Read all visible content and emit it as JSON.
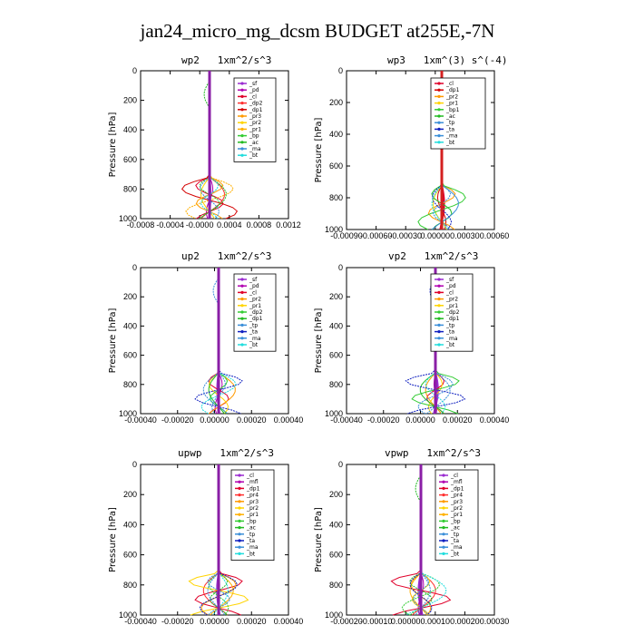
{
  "title": "jan24_micro_mg_dcsm  BUDGET at255E,-7N",
  "chart_data": [
    {
      "type": "line",
      "title": "wp2   1xm^2/s^3",
      "ylabel": "Pressure [hPa]",
      "ylim": [
        1000,
        0
      ],
      "y_ticks": [
        "0",
        "200",
        "400",
        "600",
        "800",
        "1000"
      ],
      "x_ticks": [
        "-0.0008",
        "-0.0004",
        "-0.0000",
        "0.0004",
        "0.0008",
        "0.0012"
      ],
      "legend": [
        "_sf",
        "_pd",
        "_cl",
        "_dp2",
        "_dp1",
        "_pr3",
        "_pr2",
        "_pr1",
        "_bp",
        "_ac",
        "_ma",
        "_bt"
      ],
      "colors": [
        "#9a2bd1",
        "#b000b0",
        "#e0002a",
        "#ff3030",
        "#d40000",
        "#ff9a00",
        "#ffd400",
        "#ffb000",
        "#33cc33",
        "#22bb22",
        "#3b8fd9",
        "#22dddd"
      ]
    },
    {
      "type": "line",
      "title": "wp3   1xm^(3) s^(-4)",
      "ylabel": "Pressure [hPa]",
      "ylim": [
        1000,
        0
      ],
      "y_ticks": [
        "0",
        "200",
        "400",
        "600",
        "800",
        "1000"
      ],
      "x_ticks": [
        "-0.00090",
        "-0.00060",
        "-0.00030",
        "0.00000",
        "0.00030",
        "0.00060"
      ],
      "legend": [
        "_cl",
        "_dp1",
        "_pr2",
        "_pr1",
        "_bp1",
        "_ac",
        "_tp",
        "_ta",
        "_ma",
        "_bt"
      ],
      "colors": [
        "#e0002a",
        "#d40000",
        "#ff9a00",
        "#ffd400",
        "#33cc33",
        "#22bb22",
        "#3b8fd9",
        "#1020c0",
        "#3b8fd9",
        "#22dddd"
      ]
    },
    {
      "type": "line",
      "title": "up2   1xm^2/s^3",
      "ylabel": "Pressure [hPa]",
      "ylim": [
        1000,
        0
      ],
      "y_ticks": [
        "0",
        "200",
        "400",
        "600",
        "800",
        "1000"
      ],
      "x_ticks": [
        "-0.00040",
        "-0.00020",
        "0.00000",
        "0.00020",
        "0.00040"
      ],
      "legend": [
        "_sf",
        "_pd",
        "_cl",
        "_pr2",
        "_pr1",
        "_dp2",
        "_dp1",
        "_tp",
        "_ta",
        "_ma",
        "_bt"
      ],
      "colors": [
        "#9a2bd1",
        "#b000b0",
        "#e0002a",
        "#ff9a00",
        "#ffd400",
        "#33cc33",
        "#22bb22",
        "#3b8fd9",
        "#1020c0",
        "#3b8fd9",
        "#22dddd"
      ]
    },
    {
      "type": "line",
      "title": "vp2   1xm^2/s^3",
      "ylabel": "Pressure [hPa]",
      "ylim": [
        1000,
        0
      ],
      "y_ticks": [
        "0",
        "200",
        "400",
        "600",
        "800",
        "1000"
      ],
      "x_ticks": [
        "-0.00040",
        "-0.00020",
        "0.00000",
        "0.00020",
        "0.00040"
      ],
      "legend": [
        "_sf",
        "_pd",
        "_cl",
        "_pr2",
        "_pr1",
        "_dp2",
        "_dp1",
        "_tp",
        "_ta",
        "_ma",
        "_bt"
      ],
      "colors": [
        "#9a2bd1",
        "#b000b0",
        "#e0002a",
        "#ff9a00",
        "#ffd400",
        "#33cc33",
        "#22bb22",
        "#3b8fd9",
        "#1020c0",
        "#3b8fd9",
        "#22dddd"
      ]
    },
    {
      "type": "line",
      "title": "upwp   1xm^2/s^3",
      "ylabel": "Pressure [hPa]",
      "ylim": [
        1000,
        0
      ],
      "y_ticks": [
        "0",
        "200",
        "400",
        "600",
        "800",
        "1000"
      ],
      "x_ticks": [
        "-0.00040",
        "-0.00020",
        "0.00000",
        "0.00020",
        "0.00040"
      ],
      "legend": [
        "_cl",
        "_mfl",
        "_dp1",
        "_pr4",
        "_pr3",
        "_pr2",
        "_pr1",
        "_bp",
        "_ac",
        "_tp",
        "_ta",
        "_ma",
        "_bt"
      ],
      "colors": [
        "#9a2bd1",
        "#b000b0",
        "#e0002a",
        "#ff3030",
        "#ff9a00",
        "#ffd400",
        "#ffb000",
        "#33cc33",
        "#22bb22",
        "#3b8fd9",
        "#1020c0",
        "#3b8fd9",
        "#22dddd"
      ]
    },
    {
      "type": "line",
      "title": "vpwp   1xm^2/s^3",
      "ylabel": "Pressure [hPa]",
      "ylim": [
        1000,
        0
      ],
      "y_ticks": [
        "0",
        "200",
        "400",
        "600",
        "800",
        "1000"
      ],
      "x_ticks": [
        "-0.00020",
        "-0.00010",
        "0.00000",
        "0.00010",
        "0.00020",
        "0.00030"
      ],
      "legend": [
        "_cl",
        "_mfl",
        "_dp1",
        "_pr4",
        "_pr3",
        "_pr2",
        "_pr1",
        "_bp",
        "_ac",
        "_tp",
        "_ta",
        "_ma",
        "_bt"
      ],
      "colors": [
        "#9a2bd1",
        "#b000b0",
        "#e0002a",
        "#ff3030",
        "#ff9a00",
        "#ffd400",
        "#ffb000",
        "#33cc33",
        "#22bb22",
        "#3b8fd9",
        "#1020c0",
        "#3b8fd9",
        "#22dddd"
      ]
    }
  ]
}
